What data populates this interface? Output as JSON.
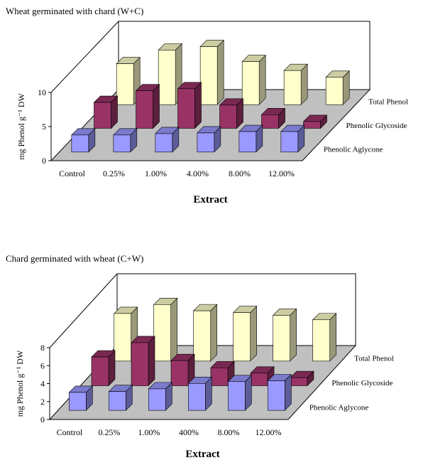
{
  "chart_data": [
    {
      "type": "bar3d",
      "title": "Wheat germinated with chard (W+C)",
      "x_label": "Extract",
      "y_label": "mg Phenol g⁻¹ DW",
      "categories": [
        "Control",
        "0.25%",
        "1.00%",
        "4.00%",
        "8.00%",
        "12.00%"
      ],
      "series": [
        {
          "name": "Phenolic Aglycone",
          "color": "#9999ff",
          "values": [
            2.5,
            2.5,
            2.7,
            2.8,
            3.0,
            3.0
          ]
        },
        {
          "name": "Phenolic Glycoside",
          "color": "#993366",
          "values": [
            3.8,
            5.5,
            5.8,
            3.4,
            2.0,
            1.0
          ]
        },
        {
          "name": "Total Phenol",
          "color": "#ffffcc",
          "values": [
            6.0,
            8.0,
            8.5,
            6.3,
            5.0,
            4.0
          ]
        }
      ],
      "ylim": [
        0,
        10
      ],
      "yticks": [
        0,
        5,
        10
      ]
    },
    {
      "type": "bar3d",
      "title": "Chard germinated with wheat (C+W)",
      "x_label": "Extract",
      "y_label": "mg Phenol g⁻¹ DW",
      "categories": [
        "Control",
        "0.25%",
        "1.00%",
        "400%",
        "8.00%",
        "12.00%"
      ],
      "series": [
        {
          "name": "Phenolic Aglycone",
          "color": "#9999ff",
          "values": [
            2.0,
            2.1,
            2.4,
            3.0,
            3.2,
            3.3
          ]
        },
        {
          "name": "Phenolic Glycoside",
          "color": "#993366",
          "values": [
            3.2,
            4.8,
            2.8,
            2.0,
            1.4,
            0.9
          ]
        },
        {
          "name": "Total Phenol",
          "color": "#ffffcc",
          "values": [
            5.3,
            6.3,
            5.6,
            5.4,
            5.1,
            4.6
          ]
        }
      ],
      "ylim": [
        0,
        8
      ],
      "yticks": [
        0,
        2,
        4,
        6,
        8
      ]
    }
  ]
}
